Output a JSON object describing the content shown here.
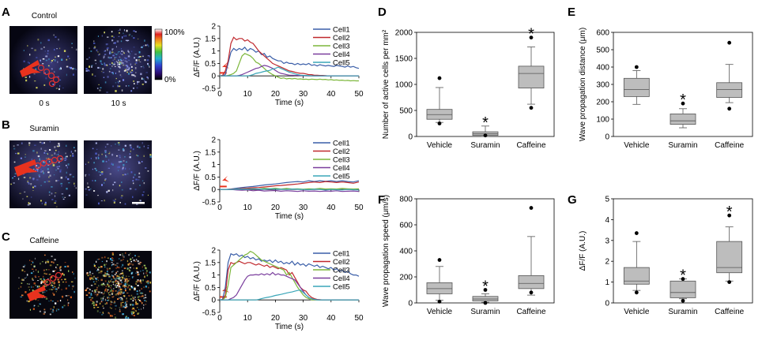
{
  "panel_letters": [
    "A",
    "B",
    "C",
    "D",
    "E",
    "F",
    "G"
  ],
  "conditions": {
    "control": "Control",
    "suramin": "Suramin",
    "caffeine": "Caffeine"
  },
  "image_time_labels": [
    "0 s",
    "10 s"
  ],
  "colorbar": {
    "max_label": "100%",
    "min_label": "0%"
  },
  "cell_names": [
    "Cell1",
    "Cell2",
    "Cell3",
    "Cell4",
    "Cell5"
  ],
  "colors": {
    "cell1": "#3a5ea8",
    "cell2": "#c0282d",
    "cell3": "#7bb63a",
    "cell4": "#7a3e9d",
    "cell5": "#3aa6b8",
    "box_fill": "#bdbdbd",
    "stim": "#e8321e"
  },
  "chart_data": [
    {
      "id": "A-traces",
      "type": "line",
      "title": "Control",
      "xlabel": "Time (s)",
      "ylabel": "ΔF/F (A.U.)",
      "xlim": [
        0,
        50
      ],
      "ylim": [
        -0.5,
        2
      ],
      "xticks": [
        0,
        10,
        20,
        30,
        40,
        50
      ],
      "yticks": [
        -0.5,
        0,
        0.5,
        1,
        1.5,
        2
      ],
      "x": [
        0,
        1,
        2,
        3,
        4,
        5,
        6,
        7,
        8,
        9,
        10,
        11,
        12,
        13,
        14,
        15,
        16,
        17,
        18,
        19,
        20,
        21,
        22,
        23,
        24,
        25,
        26,
        27,
        28,
        29,
        30,
        31,
        32,
        33,
        34,
        35,
        36,
        37,
        38,
        39,
        40,
        41,
        42,
        43,
        44,
        45,
        46,
        47,
        48,
        49,
        50
      ],
      "series": [
        {
          "name": "Cell1",
          "values": [
            0,
            0.02,
            0.05,
            0.5,
            0.95,
            1.1,
            1.02,
            1.1,
            1.05,
            1.15,
            1.0,
            1.1,
            1.05,
            0.95,
            1.0,
            0.85,
            0.9,
            0.75,
            0.8,
            0.7,
            0.65,
            0.6,
            0.6,
            0.5,
            0.55,
            0.5,
            0.5,
            0.45,
            0.5,
            0.45,
            0.48,
            0.45,
            0.5,
            0.42,
            0.45,
            0.4,
            0.45,
            0.42,
            0.4,
            0.42,
            0.4,
            0.38,
            0.42,
            0.4,
            0.38,
            0.35,
            0.4,
            0.35,
            0.38,
            0.33,
            0.3
          ]
        },
        {
          "name": "Cell2",
          "values": [
            0,
            0.02,
            0.2,
            0.6,
            1.3,
            1.55,
            1.45,
            1.5,
            1.5,
            1.4,
            1.45,
            1.35,
            1.3,
            1.15,
            1.0,
            0.9,
            0.8,
            0.7,
            0.6,
            0.5,
            0.45,
            0.4,
            0.35,
            0.3,
            0.25,
            0.2,
            0.18,
            0.15,
            0.12,
            0.1,
            0.1,
            0.08,
            0.05,
            0.05,
            0.03,
            0.03,
            0.02,
            0.02,
            0.01,
            0,
            0,
            0,
            0,
            0,
            0,
            0,
            0,
            0,
            0,
            0,
            0
          ]
        },
        {
          "name": "Cell3",
          "values": [
            0,
            0,
            0,
            0.02,
            0.05,
            0.1,
            0.2,
            0.5,
            0.8,
            0.9,
            0.85,
            0.8,
            0.7,
            0.55,
            0.5,
            0.4,
            0.3,
            0.2,
            0.12,
            0.05,
            0,
            -0.05,
            -0.1,
            -0.08,
            -0.12,
            -0.1,
            -0.12,
            -0.1,
            -0.13,
            -0.12,
            -0.14,
            -0.13,
            -0.15,
            -0.13,
            -0.14,
            -0.15,
            -0.13,
            -0.15,
            -0.14,
            -0.16,
            -0.15,
            -0.17,
            -0.16,
            -0.18,
            -0.17,
            -0.19,
            -0.18,
            -0.2,
            -0.19,
            -0.2,
            -0.2
          ]
        },
        {
          "name": "Cell4",
          "values": [
            0,
            0,
            0,
            0,
            0,
            0,
            0,
            0.02,
            0.05,
            0.1,
            0.15,
            0.2,
            0.25,
            0.3,
            0.32,
            0.38,
            0.42,
            0.4,
            0.35,
            0.3,
            0.22,
            0.15,
            0.1,
            0.08,
            0.05,
            0.03,
            0.03,
            0.02,
            0.02,
            0.01,
            0.01,
            0.01,
            0,
            0,
            0,
            0,
            0,
            0,
            0,
            0,
            0,
            0,
            0,
            0,
            0,
            0,
            0,
            0,
            0,
            0,
            0
          ]
        },
        {
          "name": "Cell5",
          "values": [
            0,
            0,
            0,
            0,
            0,
            0,
            0,
            0,
            0,
            0,
            0,
            0.02,
            0.05,
            0.1,
            0.12,
            0.15,
            0.18,
            0.2,
            0.22,
            0.28,
            0.3,
            0.35,
            0.3,
            0.25,
            0.2,
            0.15,
            0.12,
            0.08,
            0.05,
            0.03,
            0.02,
            0.02,
            0.01,
            0,
            0,
            0,
            0,
            0,
            0,
            0,
            0,
            0,
            0,
            0,
            0,
            0,
            0,
            0,
            0,
            0,
            0
          ]
        }
      ]
    },
    {
      "id": "B-traces",
      "type": "line",
      "title": "Suramin",
      "xlabel": "Time (s)",
      "ylabel": "ΔF/F (A.U.)",
      "xlim": [
        0,
        50
      ],
      "ylim": [
        -0.5,
        2
      ],
      "xticks": [
        0,
        10,
        20,
        30,
        40,
        50
      ],
      "yticks": [
        -0.5,
        0,
        0.5,
        1,
        1.5,
        2
      ],
      "x": [
        0,
        2,
        4,
        6,
        8,
        10,
        12,
        14,
        16,
        18,
        20,
        22,
        24,
        26,
        28,
        30,
        32,
        34,
        36,
        38,
        40,
        42,
        44,
        46,
        48,
        50
      ],
      "series": [
        {
          "name": "Cell1",
          "values": [
            0,
            0,
            0.02,
            0.05,
            0.08,
            0.1,
            0.12,
            0.15,
            0.18,
            0.2,
            0.22,
            0.25,
            0.28,
            0.3,
            0.32,
            0.3,
            0.35,
            0.32,
            0.35,
            0.33,
            0.35,
            0.32,
            0.35,
            0.32,
            0.3,
            0.35
          ]
        },
        {
          "name": "Cell2",
          "values": [
            0,
            0,
            0.01,
            0.02,
            0.04,
            0.05,
            0.07,
            0.08,
            0.1,
            0.12,
            0.15,
            0.16,
            0.18,
            0.2,
            0.22,
            0.25,
            0.28,
            0.3,
            0.28,
            0.32,
            0.3,
            0.28,
            0.3,
            0.28,
            0.25,
            0.3
          ]
        },
        {
          "name": "Cell3",
          "values": [
            0,
            0,
            0,
            0.01,
            0.02,
            0.02,
            0.03,
            0.02,
            0.05,
            0.03,
            0.05,
            0.02,
            0.04,
            0.02,
            0.03,
            0.01,
            0.03,
            0.02,
            0.04,
            0.02,
            0.03,
            0.02,
            0.04,
            0.03,
            0.02,
            0.03
          ]
        },
        {
          "name": "Cell4",
          "values": [
            0,
            0,
            0,
            -0.02,
            -0.03,
            -0.02,
            -0.05,
            -0.03,
            -0.06,
            -0.05,
            -0.04,
            -0.07,
            -0.05,
            -0.06,
            -0.08,
            -0.05,
            -0.07,
            -0.06,
            -0.08,
            -0.06,
            -0.07,
            -0.05,
            -0.08,
            -0.07,
            -0.06,
            -0.08
          ]
        },
        {
          "name": "Cell5",
          "values": [
            0,
            0,
            0,
            0.01,
            0.02,
            0.01,
            0.03,
            0.02,
            0.01,
            0.03,
            0.02,
            0.01,
            0.0,
            0.02,
            0.01,
            0.0,
            -0.01,
            0.01,
            0.0,
            -0.02,
            0.0,
            -0.01,
            -0.02,
            0.0,
            -0.01,
            -0.02
          ]
        }
      ]
    },
    {
      "id": "C-traces",
      "type": "line",
      "title": "Caffeine",
      "xlabel": "Time (s)",
      "ylabel": "ΔF/F (A.U.)",
      "xlim": [
        0,
        50
      ],
      "ylim": [
        -0.5,
        2
      ],
      "xticks": [
        0,
        10,
        20,
        30,
        40,
        50
      ],
      "yticks": [
        -0.5,
        0,
        0.5,
        1,
        1.5,
        2
      ],
      "x": [
        0,
        1,
        2,
        3,
        4,
        5,
        6,
        7,
        8,
        9,
        10,
        11,
        12,
        13,
        14,
        15,
        16,
        17,
        18,
        19,
        20,
        21,
        22,
        23,
        24,
        25,
        26,
        27,
        28,
        29,
        30,
        31,
        32,
        33,
        34,
        35,
        36,
        37,
        38,
        39,
        40,
        41,
        42,
        43,
        44,
        45,
        46,
        47,
        48,
        49,
        50
      ],
      "series": [
        {
          "name": "Cell1",
          "values": [
            0,
            0.02,
            0.5,
            1.5,
            1.85,
            1.8,
            1.85,
            1.75,
            1.8,
            1.7,
            1.75,
            1.65,
            1.7,
            1.6,
            1.65,
            1.55,
            1.6,
            1.55,
            1.6,
            1.5,
            1.6,
            1.5,
            1.55,
            1.45,
            1.5,
            1.45,
            1.55,
            1.4,
            1.5,
            1.4,
            1.45,
            1.35,
            1.45,
            1.4,
            1.35,
            1.4,
            1.3,
            1.35,
            1.3,
            1.25,
            1.3,
            1.2,
            1.25,
            1.15,
            1.2,
            1.1,
            1.15,
            1.05,
            1.0,
            1.0,
            0.95
          ]
        },
        {
          "name": "Cell2",
          "values": [
            0,
            0.01,
            0.2,
            1.2,
            1.5,
            1.45,
            1.5,
            1.55,
            1.5,
            1.45,
            1.5,
            1.5,
            1.45,
            1.4,
            1.45,
            1.4,
            1.35,
            1.4,
            1.3,
            1.35,
            1.3,
            1.25,
            1.3,
            1.25,
            1.2,
            1.0,
            1.1,
            0.9,
            0.7,
            0.5,
            0.4,
            0.35,
            0.2,
            0.1,
            0.05,
            0.02,
            0.01,
            0,
            0,
            0,
            0,
            0,
            0,
            0,
            0,
            0,
            0,
            0,
            0,
            0,
            0
          ]
        },
        {
          "name": "Cell3",
          "values": [
            0,
            0,
            0.1,
            0.6,
            1.3,
            1.4,
            1.5,
            1.6,
            1.7,
            1.8,
            1.85,
            1.95,
            1.9,
            1.8,
            1.7,
            1.6,
            1.55,
            1.5,
            1.45,
            1.4,
            1.35,
            1.3,
            1.25,
            1.2,
            1.0,
            1.1,
            0.9,
            0.7,
            0.5,
            0.35,
            0.2,
            0.1,
            0.05,
            0,
            0,
            0,
            0,
            0,
            0,
            0,
            0,
            0,
            0,
            0,
            0,
            0,
            0,
            0,
            0,
            0,
            0
          ]
        },
        {
          "name": "Cell4",
          "values": [
            0,
            0,
            0,
            0,
            0.05,
            0.1,
            0.2,
            0.4,
            0.6,
            0.8,
            0.95,
            1.0,
            1.0,
            1.02,
            1.0,
            1.05,
            1.0,
            1.05,
            1.0,
            1.1,
            1.0,
            1.05,
            1.0,
            1.0,
            0.95,
            0.9,
            0.85,
            0.8,
            0.65,
            0.5,
            0.35,
            0.2,
            0.1,
            0.05,
            0.02,
            0.01,
            0,
            0,
            0,
            0,
            0,
            0,
            0,
            0,
            0,
            0,
            0,
            0,
            0,
            0,
            0
          ]
        },
        {
          "name": "Cell5",
          "values": [
            0,
            0,
            0,
            0,
            0,
            0,
            0,
            0,
            0,
            0,
            0,
            0,
            0,
            0,
            0.02,
            0.05,
            0.08,
            0.1,
            0.12,
            0.15,
            0.18,
            0.2,
            0.22,
            0.25,
            0.28,
            0.3,
            0.32,
            0.35,
            0.38,
            0.4,
            0.3,
            0.2,
            0.1,
            0.05,
            0.02,
            0,
            0,
            0,
            0,
            0,
            0,
            0,
            0,
            0,
            0,
            0,
            0,
            0,
            0,
            0,
            0
          ]
        }
      ]
    },
    {
      "id": "D-box",
      "type": "box",
      "ylabel": "Number of active cells per mm²",
      "ylim": [
        0,
        2000
      ],
      "yticks": [
        0,
        500,
        1000,
        1500,
        2000
      ],
      "categories": [
        "Vehicle",
        "Suramin",
        "Caffeine"
      ],
      "boxes": [
        {
          "whisker_low": 270,
          "q1": 330,
          "median": 420,
          "q3": 520,
          "whisker_high": 940,
          "outliers": [
            1120,
            250
          ],
          "star": false
        },
        {
          "whisker_low": 0,
          "q1": 20,
          "median": 50,
          "q3": 90,
          "whisker_high": 200,
          "outliers": [
            20
          ],
          "star": true
        },
        {
          "whisker_low": 620,
          "q1": 930,
          "median": 1210,
          "q3": 1350,
          "whisker_high": 1720,
          "outliers": [
            1900,
            550
          ],
          "star": true
        }
      ]
    },
    {
      "id": "E-box",
      "type": "box",
      "ylabel": "Wave propagation distance (μm)",
      "ylim": [
        0,
        600
      ],
      "yticks": [
        0,
        100,
        200,
        300,
        400,
        500,
        600
      ],
      "categories": [
        "Vehicle",
        "Suramin",
        "Caffeine"
      ],
      "boxes": [
        {
          "whisker_low": 185,
          "q1": 230,
          "median": 270,
          "q3": 335,
          "whisker_high": 380,
          "outliers": [
            400
          ],
          "star": false
        },
        {
          "whisker_low": 50,
          "q1": 70,
          "median": 90,
          "q3": 130,
          "whisker_high": 160,
          "outliers": [
            190
          ],
          "star": true
        },
        {
          "whisker_low": 195,
          "q1": 225,
          "median": 270,
          "q3": 310,
          "whisker_high": 415,
          "outliers": [
            540,
            160
          ],
          "star": false
        }
      ]
    },
    {
      "id": "F-box",
      "type": "box",
      "ylabel": "Wave propagation speed (μm/s)",
      "ylim": [
        0,
        800
      ],
      "yticks": [
        0,
        200,
        400,
        600,
        800
      ],
      "categories": [
        "Vehicle",
        "Suramin",
        "Caffeine"
      ],
      "boxes": [
        {
          "whisker_low": 20,
          "q1": 70,
          "median": 110,
          "q3": 155,
          "whisker_high": 280,
          "outliers": [
            330,
            10
          ],
          "star": false
        },
        {
          "whisker_low": 5,
          "q1": 15,
          "median": 30,
          "q3": 50,
          "whisker_high": 70,
          "outliers": [
            100,
            0
          ],
          "star": true
        },
        {
          "whisker_low": 60,
          "q1": 110,
          "median": 150,
          "q3": 210,
          "whisker_high": 510,
          "outliers": [
            730,
            80
          ],
          "star": false
        }
      ]
    },
    {
      "id": "G-box",
      "type": "box",
      "ylabel": "ΔF/F (A.U.)",
      "ylim": [
        0,
        5
      ],
      "yticks": [
        0,
        1,
        2,
        3,
        4,
        5
      ],
      "categories": [
        "Vehicle",
        "Suramin",
        "Caffeine"
      ],
      "boxes": [
        {
          "whisker_low": 0.6,
          "q1": 0.9,
          "median": 1.05,
          "q3": 1.7,
          "whisker_high": 2.95,
          "outliers": [
            3.35,
            0.5
          ],
          "star": false
        },
        {
          "whisker_low": 0.2,
          "q1": 0.25,
          "median": 0.5,
          "q3": 1.05,
          "whisker_high": 1.15,
          "outliers": [
            1.15,
            0.1
          ],
          "star": true
        },
        {
          "whisker_low": 1.05,
          "q1": 1.45,
          "median": 1.7,
          "q3": 2.95,
          "whisker_high": 3.65,
          "outliers": [
            4.2,
            1.0
          ],
          "star": true
        }
      ]
    }
  ]
}
